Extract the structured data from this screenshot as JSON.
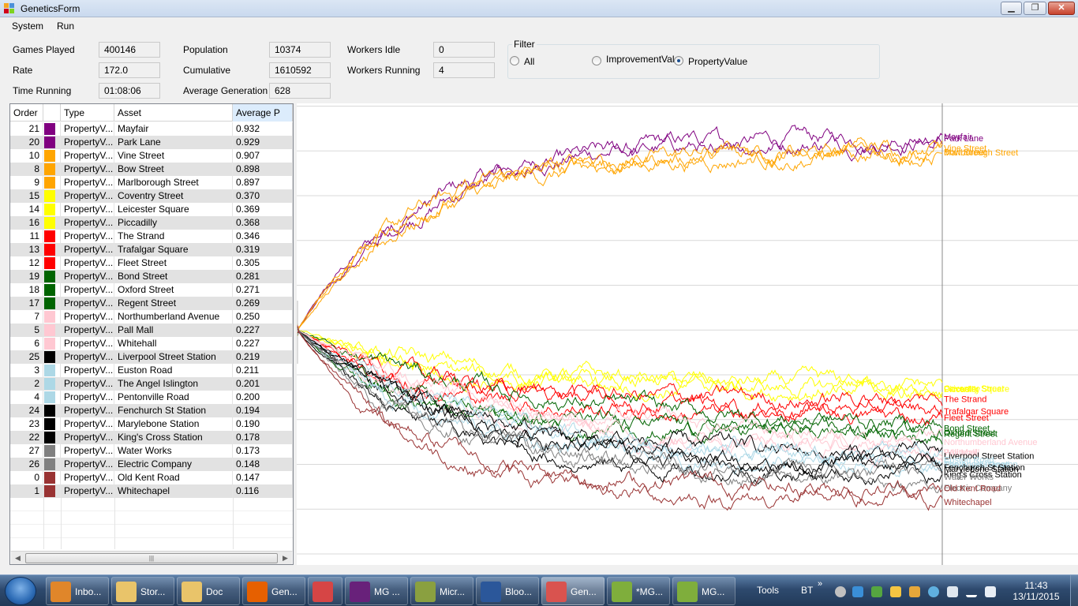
{
  "window": {
    "title": "GeneticsForm",
    "minimize": "▁",
    "maximize": "❐",
    "close": "✕"
  },
  "menu": [
    "System",
    "Run"
  ],
  "stats": {
    "games_played": {
      "label": "Games Played",
      "value": "400146"
    },
    "rate": {
      "label": "Rate",
      "value": "172.0"
    },
    "time_running": {
      "label": "Time Running",
      "value": "01:08:06"
    },
    "population": {
      "label": "Population",
      "value": "10374"
    },
    "cumulative": {
      "label": "Cumulative",
      "value": "1610592"
    },
    "average_generation": {
      "label": "Average Generation",
      "value": "628"
    },
    "workers_idle": {
      "label": "Workers Idle",
      "value": "0"
    },
    "workers_running": {
      "label": "Workers Running",
      "value": "4"
    }
  },
  "filter": {
    "title": "Filter",
    "options": [
      {
        "label": "All",
        "checked": false
      },
      {
        "label": "ImprovementVal",
        "checked": false
      },
      {
        "label": "PropertyValue",
        "checked": true
      }
    ]
  },
  "grid": {
    "columns": [
      "Order",
      "",
      "Type",
      "Asset",
      "Average P"
    ],
    "scroll_thumb": "|||",
    "rows": [
      {
        "order": "21",
        "color": "#800080",
        "type": "PropertyV...",
        "asset": "Mayfair",
        "avg": "0.932"
      },
      {
        "order": "20",
        "color": "#800080",
        "type": "PropertyV...",
        "asset": "Park Lane",
        "avg": "0.929"
      },
      {
        "order": "10",
        "color": "#ffa500",
        "type": "PropertyV...",
        "asset": "Vine Street",
        "avg": "0.907"
      },
      {
        "order": "8",
        "color": "#ffa500",
        "type": "PropertyV...",
        "asset": "Bow Street",
        "avg": "0.898"
      },
      {
        "order": "9",
        "color": "#ffa500",
        "type": "PropertyV...",
        "asset": "Marlborough Street",
        "avg": "0.897"
      },
      {
        "order": "15",
        "color": "#ffff00",
        "type": "PropertyV...",
        "asset": "Coventry Street",
        "avg": "0.370"
      },
      {
        "order": "14",
        "color": "#ffff00",
        "type": "PropertyV...",
        "asset": "Leicester Square",
        "avg": "0.369"
      },
      {
        "order": "16",
        "color": "#ffff00",
        "type": "PropertyV...",
        "asset": "Piccadilly",
        "avg": "0.368"
      },
      {
        "order": "11",
        "color": "#ff0000",
        "type": "PropertyV...",
        "asset": "The Strand",
        "avg": "0.346"
      },
      {
        "order": "13",
        "color": "#ff0000",
        "type": "PropertyV...",
        "asset": "Trafalgar Square",
        "avg": "0.319"
      },
      {
        "order": "12",
        "color": "#ff0000",
        "type": "PropertyV...",
        "asset": "Fleet Street",
        "avg": "0.305"
      },
      {
        "order": "19",
        "color": "#006400",
        "type": "PropertyV...",
        "asset": "Bond Street",
        "avg": "0.281"
      },
      {
        "order": "18",
        "color": "#006400",
        "type": "PropertyV...",
        "asset": "Oxford Street",
        "avg": "0.271"
      },
      {
        "order": "17",
        "color": "#006400",
        "type": "PropertyV...",
        "asset": "Regent Street",
        "avg": "0.269"
      },
      {
        "order": "7",
        "color": "#ffc8d2",
        "type": "PropertyV...",
        "asset": "Northumberland Avenue",
        "avg": "0.250"
      },
      {
        "order": "5",
        "color": "#ffc8d2",
        "type": "PropertyV...",
        "asset": "Pall Mall",
        "avg": "0.227"
      },
      {
        "order": "6",
        "color": "#ffc8d2",
        "type": "PropertyV...",
        "asset": "Whitehall",
        "avg": "0.227"
      },
      {
        "order": "25",
        "color": "#000000",
        "type": "PropertyV...",
        "asset": "Liverpool Street Station",
        "avg": "0.219"
      },
      {
        "order": "3",
        "color": "#add8e6",
        "type": "PropertyV...",
        "asset": "Euston Road",
        "avg": "0.211"
      },
      {
        "order": "2",
        "color": "#add8e6",
        "type": "PropertyV...",
        "asset": "The Angel Islington",
        "avg": "0.201"
      },
      {
        "order": "4",
        "color": "#add8e6",
        "type": "PropertyV...",
        "asset": "Pentonville Road",
        "avg": "0.200"
      },
      {
        "order": "24",
        "color": "#000000",
        "type": "PropertyV...",
        "asset": "Fenchurch St Station",
        "avg": "0.194"
      },
      {
        "order": "23",
        "color": "#000000",
        "type": "PropertyV...",
        "asset": "Marylebone Station",
        "avg": "0.190"
      },
      {
        "order": "22",
        "color": "#000000",
        "type": "PropertyV...",
        "asset": "King's Cross Station",
        "avg": "0.178"
      },
      {
        "order": "27",
        "color": "#808080",
        "type": "PropertyV...",
        "asset": "Water Works",
        "avg": "0.173"
      },
      {
        "order": "26",
        "color": "#808080",
        "type": "PropertyV...",
        "asset": "Electric Company",
        "avg": "0.148"
      },
      {
        "order": "0",
        "color": "#993333",
        "type": "PropertyV...",
        "asset": "Old Kent Road",
        "avg": "0.147"
      },
      {
        "order": "1",
        "color": "#993333",
        "type": "PropertyV...",
        "asset": "Whitechapel",
        "avg": "0.116"
      }
    ]
  },
  "chart_data": {
    "type": "line",
    "title": "",
    "xlabel": "",
    "ylabel": "",
    "ylim": [
      0,
      1
    ],
    "grid": true,
    "legend": "right-end labels",
    "x_generations": [
      0,
      628
    ],
    "y_start": 0.5,
    "series": [
      {
        "name": "Mayfair",
        "color": "#800080",
        "final": 0.932
      },
      {
        "name": "Park Lane",
        "color": "#800080",
        "final": 0.929
      },
      {
        "name": "Vine Street",
        "color": "#ffa500",
        "final": 0.907
      },
      {
        "name": "Bow Street",
        "color": "#ffa500",
        "final": 0.898
      },
      {
        "name": "Marlborough Street",
        "color": "#ffa500",
        "final": 0.897
      },
      {
        "name": "Coventry Street",
        "color": "#ffff00",
        "final": 0.37
      },
      {
        "name": "Leicester Square",
        "color": "#ffff00",
        "final": 0.369
      },
      {
        "name": "Piccadilly",
        "color": "#ffff00",
        "final": 0.368
      },
      {
        "name": "The Strand",
        "color": "#ff0000",
        "final": 0.346
      },
      {
        "name": "Trafalgar Square",
        "color": "#ff0000",
        "final": 0.319
      },
      {
        "name": "Fleet Street",
        "color": "#ff0000",
        "final": 0.305
      },
      {
        "name": "Bond Street",
        "color": "#006400",
        "final": 0.281
      },
      {
        "name": "Oxford Street",
        "color": "#006400",
        "final": 0.271
      },
      {
        "name": "Regent Street",
        "color": "#006400",
        "final": 0.269
      },
      {
        "name": "Northumberland Avenue",
        "color": "#ffc8d2",
        "final": 0.25
      },
      {
        "name": "Pall Mall",
        "color": "#ffc8d2",
        "final": 0.227
      },
      {
        "name": "Whitehall",
        "color": "#ffc8d2",
        "final": 0.227
      },
      {
        "name": "Liverpool Street Station",
        "color": "#000000",
        "final": 0.219
      },
      {
        "name": "Euston Road",
        "color": "#add8e6",
        "final": 0.211
      },
      {
        "name": "The Angel Islington",
        "color": "#add8e6",
        "final": 0.201
      },
      {
        "name": "Pentonville Road",
        "color": "#add8e6",
        "final": 0.2
      },
      {
        "name": "Fenchurch St Station",
        "color": "#000000",
        "final": 0.194
      },
      {
        "name": "Marylebone Station",
        "color": "#000000",
        "final": 0.19
      },
      {
        "name": "King's Cross Station",
        "color": "#000000",
        "final": 0.178
      },
      {
        "name": "Water Works",
        "color": "#808080",
        "final": 0.173
      },
      {
        "name": "Electric Company",
        "color": "#808080",
        "final": 0.148
      },
      {
        "name": "Old Kent Road",
        "color": "#993333",
        "final": 0.147
      },
      {
        "name": "Whitechapel",
        "color": "#993333",
        "final": 0.116
      }
    ]
  },
  "taskbar": {
    "items": [
      {
        "label": "Inbo...",
        "icon": "outlook-icon",
        "color": "#e0862a"
      },
      {
        "label": "Stor...",
        "icon": "folder-icon",
        "color": "#e9c46a"
      },
      {
        "label": "Doc",
        "icon": "folder-icon",
        "color": "#e9c46a"
      },
      {
        "label": "Gen...",
        "icon": "firefox-icon",
        "color": "#e66000"
      },
      {
        "label": "",
        "icon": "colorful-app-icon",
        "color": "#d64545"
      },
      {
        "label": "MG ...",
        "icon": "visual-studio-icon",
        "color": "#68217a"
      },
      {
        "label": "Micr...",
        "icon": "tools-icon",
        "color": "#8aa040"
      },
      {
        "label": "Bloo...",
        "icon": "word-icon",
        "color": "#2b579a"
      },
      {
        "label": "Gen...",
        "icon": "genetics-form-icon",
        "color": "#d9534f"
      },
      {
        "label": "*MG...",
        "icon": "notepad-icon",
        "color": "#7fae3c"
      },
      {
        "label": "MG...",
        "icon": "notepad-icon",
        "color": "#7fae3c"
      }
    ],
    "tools": "Tools",
    "bt": "BT",
    "time": "11:43",
    "date": "13/11/2015"
  }
}
